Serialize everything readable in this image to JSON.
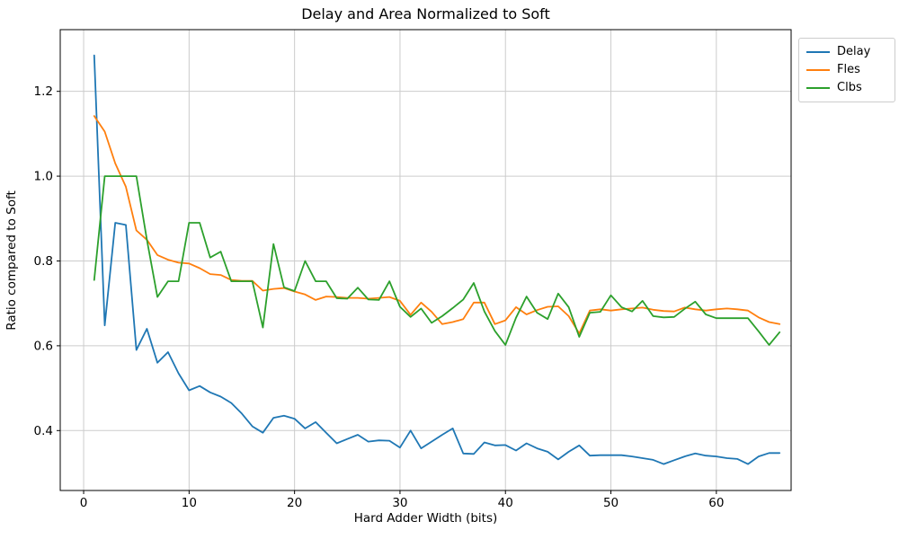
{
  "chart_data": {
    "type": "line",
    "title": "Delay and Area Normalized to Soft",
    "xlabel": "Hard Adder Width (bits)",
    "ylabel": "Ratio compared to Soft",
    "x_start": 1,
    "x_end": 66,
    "xticks": [
      0,
      10,
      20,
      30,
      40,
      50,
      60
    ],
    "yticks": [
      0.4,
      0.6,
      0.8,
      1.0,
      1.2
    ],
    "xlim": [
      -2.22,
      67.09
    ],
    "ylim": [
      0.2587,
      1.3455
    ],
    "grid": true,
    "grid_color": "#cccccc",
    "legend_position": "upper right",
    "series": [
      {
        "name": "Delay",
        "color": "#1f77b4",
        "values": [
          1.285,
          0.648,
          0.89,
          0.885,
          0.59,
          0.64,
          0.56,
          0.585,
          0.535,
          0.495,
          0.505,
          0.49,
          0.48,
          0.465,
          0.44,
          0.41,
          0.395,
          0.43,
          0.435,
          0.428,
          0.405,
          0.42,
          0.395,
          0.37,
          0.38,
          0.39,
          0.374,
          0.377,
          0.376,
          0.36,
          0.4,
          0.358,
          0.374,
          0.39,
          0.405,
          0.346,
          0.345,
          0.372,
          0.365,
          0.366,
          0.353,
          0.37,
          0.358,
          0.35,
          0.332,
          0.35,
          0.365,
          0.341,
          0.342,
          0.342,
          0.342,
          0.339,
          0.335,
          0.331,
          0.321,
          0.33,
          0.339,
          0.346,
          0.341,
          0.339,
          0.335,
          0.333,
          0.321,
          0.339,
          0.347,
          0.347
        ]
      },
      {
        "name": "Fles",
        "color": "#ff7f0e",
        "values": [
          1.142,
          1.105,
          1.03,
          0.975,
          0.872,
          0.85,
          0.814,
          0.803,
          0.796,
          0.794,
          0.783,
          0.769,
          0.767,
          0.755,
          0.753,
          0.753,
          0.73,
          0.734,
          0.736,
          0.728,
          0.721,
          0.708,
          0.716,
          0.715,
          0.713,
          0.713,
          0.711,
          0.713,
          0.715,
          0.706,
          0.673,
          0.702,
          0.68,
          0.651,
          0.656,
          0.663,
          0.702,
          0.702,
          0.651,
          0.66,
          0.691,
          0.674,
          0.684,
          0.692,
          0.693,
          0.67,
          0.629,
          0.683,
          0.686,
          0.683,
          0.686,
          0.688,
          0.69,
          0.685,
          0.682,
          0.681,
          0.69,
          0.686,
          0.683,
          0.686,
          0.688,
          0.686,
          0.683,
          0.667,
          0.656,
          0.651
        ]
      },
      {
        "name": "Clbs",
        "color": "#2ca02c",
        "values": [
          0.755,
          1.0,
          1.0,
          1.0,
          1.0,
          0.85,
          0.715,
          0.752,
          0.752,
          0.89,
          0.89,
          0.808,
          0.822,
          0.752,
          0.752,
          0.752,
          0.643,
          0.84,
          0.738,
          0.729,
          0.8,
          0.752,
          0.752,
          0.712,
          0.711,
          0.737,
          0.709,
          0.708,
          0.752,
          0.692,
          0.668,
          0.688,
          0.654,
          0.67,
          0.689,
          0.709,
          0.748,
          0.681,
          0.635,
          0.602,
          0.666,
          0.716,
          0.678,
          0.663,
          0.723,
          0.691,
          0.621,
          0.678,
          0.68,
          0.719,
          0.691,
          0.681,
          0.706,
          0.67,
          0.667,
          0.668,
          0.687,
          0.704,
          0.674,
          0.665,
          0.665,
          0.665,
          0.665,
          0.634,
          0.602,
          0.632
        ]
      }
    ]
  }
}
